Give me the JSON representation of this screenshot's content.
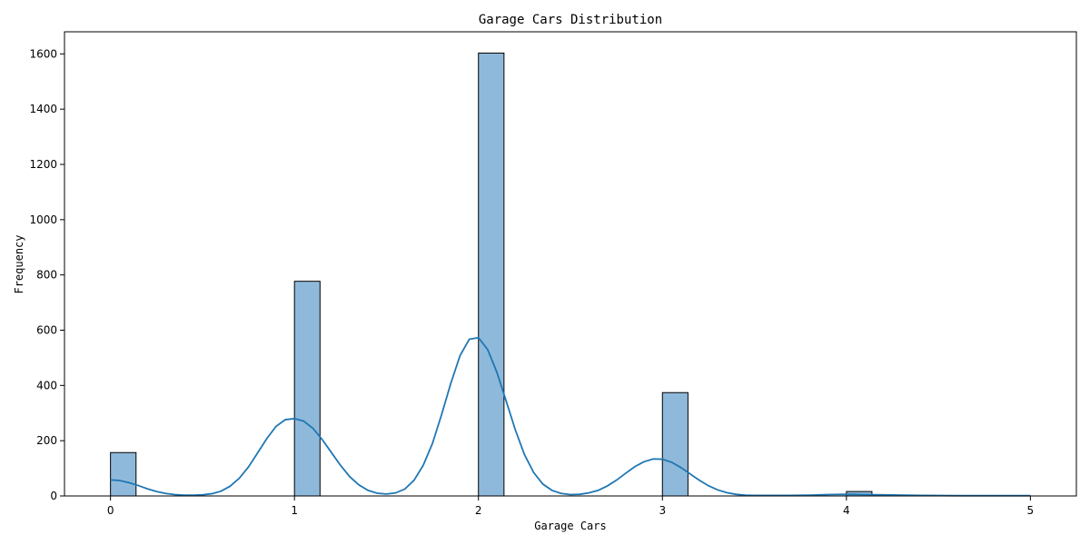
{
  "chart_data": {
    "type": "bar",
    "title": "Garage Cars Distribution",
    "xlabel": "Garage Cars",
    "ylabel": "Frequency",
    "xlim": [
      -0.25,
      5.25
    ],
    "ylim": [
      0,
      1680
    ],
    "x_ticks": [
      0,
      1,
      2,
      3,
      4,
      5
    ],
    "y_ticks": [
      0,
      200,
      400,
      600,
      800,
      1000,
      1200,
      1400,
      1600
    ],
    "bin_width": 0.1389,
    "bars": [
      {
        "x": 0,
        "value": 157
      },
      {
        "x": 1,
        "value": 777
      },
      {
        "x": 2,
        "value": 1603
      },
      {
        "x": 3,
        "value": 374
      },
      {
        "x": 4,
        "value": 16
      }
    ],
    "kde": {
      "x": [
        0,
        0.05,
        0.1,
        0.15,
        0.2,
        0.25,
        0.3,
        0.35,
        0.4,
        0.45,
        0.5,
        0.55,
        0.6,
        0.65,
        0.7,
        0.75,
        0.8,
        0.85,
        0.9,
        0.95,
        1,
        1.05,
        1.1,
        1.15,
        1.2,
        1.25,
        1.3,
        1.35,
        1.4,
        1.45,
        1.5,
        1.55,
        1.6,
        1.65,
        1.7,
        1.75,
        1.8,
        1.85,
        1.9,
        1.95,
        2,
        2.05,
        2.1,
        2.15,
        2.2,
        2.25,
        2.3,
        2.35,
        2.4,
        2.45,
        2.5,
        2.55,
        2.6,
        2.65,
        2.7,
        2.75,
        2.8,
        2.85,
        2.9,
        2.95,
        3,
        3.05,
        3.1,
        3.15,
        3.2,
        3.25,
        3.3,
        3.35,
        3.4,
        3.45,
        3.5,
        3.6,
        3.7,
        3.8,
        3.9,
        4,
        4.1,
        4.2,
        4.4,
        4.6,
        4.8,
        5
      ],
      "y": [
        58,
        56,
        48,
        38,
        26,
        16,
        9,
        5,
        3,
        3,
        4,
        8,
        17,
        35,
        64,
        105,
        156,
        208,
        252,
        276,
        280,
        271,
        245,
        205,
        158,
        111,
        70,
        40,
        20,
        10,
        7,
        11,
        25,
        57,
        111,
        190,
        295,
        408,
        508,
        567,
        573,
        530,
        448,
        345,
        240,
        150,
        85,
        43,
        20,
        9,
        5,
        6,
        11,
        20,
        36,
        57,
        82,
        106,
        124,
        134,
        133,
        122,
        103,
        80,
        57,
        37,
        22,
        12,
        6,
        3,
        2,
        2,
        2,
        3,
        5,
        6,
        5,
        4,
        2,
        1,
        1,
        1
      ]
    }
  }
}
